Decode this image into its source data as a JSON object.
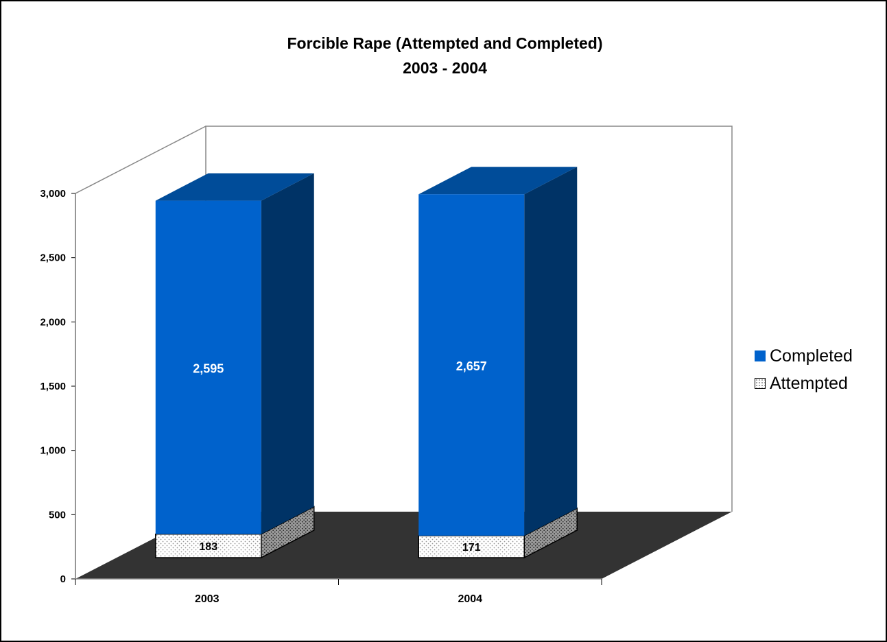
{
  "chart_data": {
    "type": "bar",
    "stacked": true,
    "style": "3d",
    "title": "Forcible Rape (Attempted and Completed)",
    "subtitle": "2003 - 2004",
    "categories": [
      "2003",
      "2004"
    ],
    "series": [
      {
        "name": "Attempted",
        "values": [
          183,
          171
        ],
        "color": "#ffffff",
        "pattern": "dotted"
      },
      {
        "name": "Completed",
        "values": [
          2595,
          2657
        ],
        "color": "#0062cc"
      }
    ],
    "ylim": [
      0,
      3000
    ],
    "yticks": [
      "0",
      "500",
      "1,000",
      "1,500",
      "2,000",
      "2,500",
      "3,000"
    ],
    "grid": false,
    "legend": "right",
    "floor_color": "#333333"
  },
  "legend": [
    {
      "label": "Completed",
      "color": "#0062cc"
    },
    {
      "label": "Attempted",
      "color": "#ffffff"
    }
  ]
}
